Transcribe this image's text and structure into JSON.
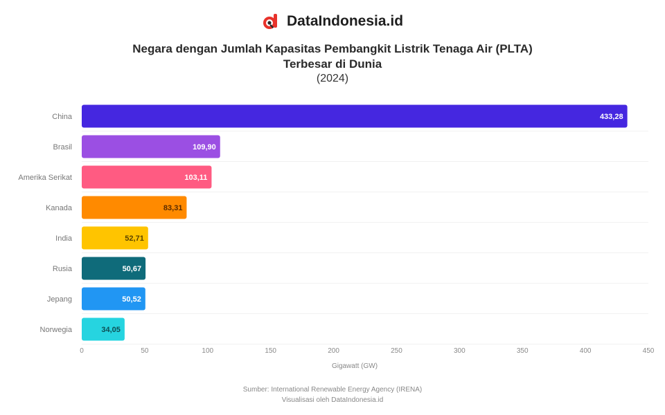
{
  "brand": {
    "name": "DataIndonesia.id",
    "logo_icon": "dataindonesia-logo-icon",
    "logo_color": "#e8322b"
  },
  "title": {
    "line1": "Negara dengan Jumlah Kapasitas Pembangkit Listrik Tenaga Air (PLTA)",
    "line2": "Terbesar di Dunia",
    "subtitle": "(2024)"
  },
  "chart_data": {
    "type": "bar",
    "orientation": "horizontal",
    "categories": [
      "China",
      "Brasil",
      "Amerika Serikat",
      "Kanada",
      "India",
      "Rusia",
      "Jepang",
      "Norwegia"
    ],
    "values": [
      433.28,
      109.9,
      103.11,
      83.31,
      52.71,
      50.67,
      50.52,
      34.05
    ],
    "value_labels": [
      "433,28",
      "109,90",
      "103,11",
      "83,31",
      "52,71",
      "50,67",
      "50,52",
      "34,05"
    ],
    "colors": [
      "#4527e0",
      "#9b4fe3",
      "#ff5b82",
      "#ff8a00",
      "#ffc400",
      "#0f6b7a",
      "#2196f3",
      "#26d4e0"
    ],
    "label_colors": [
      "#ffffff",
      "#ffffff",
      "#ffffff",
      "#5a2b00",
      "#5a4300",
      "#ffffff",
      "#ffffff",
      "#0d4f54"
    ],
    "xlim": [
      0,
      450
    ],
    "xticks": [
      "0",
      "50",
      "100",
      "150",
      "200",
      "250",
      "300",
      "350",
      "400",
      "450"
    ],
    "xlabel": "Gigawatt (GW)",
    "ylabel": "",
    "grid": true
  },
  "source": {
    "line1": "Sumber: International Renewable Energy Agency (IRENA)",
    "line2": "Visualisasi oleh DataIndonesia.id"
  }
}
